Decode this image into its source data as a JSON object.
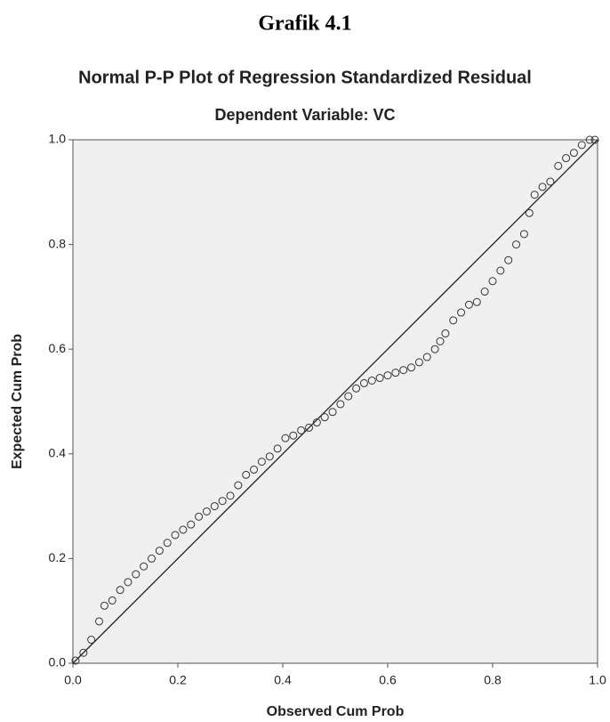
{
  "header": "Grafik 4.1",
  "chart_data": {
    "type": "scatter",
    "title": "Normal P-P Plot of Regression Standardized Residual",
    "subtitle": "Dependent Variable: VC",
    "x_label": "Observed Cum Prob",
    "y_label": "Expected Cum Prob",
    "xlim": [
      0,
      1
    ],
    "ylim": [
      0,
      1
    ],
    "xticks": [
      {
        "value": 0,
        "label": "0.0"
      },
      {
        "value": 0.2,
        "label": "0.2"
      },
      {
        "value": 0.4,
        "label": "0.4"
      },
      {
        "value": 0.6,
        "label": "0.6"
      },
      {
        "value": 0.8,
        "label": "0.8"
      },
      {
        "value": 1,
        "label": "1.0"
      }
    ],
    "yticks": [
      {
        "value": 0,
        "label": "0.0"
      },
      {
        "value": 0.2,
        "label": "0.2"
      },
      {
        "value": 0.4,
        "label": "0.4"
      },
      {
        "value": 0.6,
        "label": "0.6"
      },
      {
        "value": 0.8,
        "label": "0.8"
      },
      {
        "value": 1,
        "label": "1.0"
      }
    ],
    "plot_background": "#f0f0f0",
    "reference_line": true,
    "marker_color": "#333333",
    "x": [
      0.005,
      0.02,
      0.035,
      0.05,
      0.06,
      0.075,
      0.09,
      0.105,
      0.12,
      0.135,
      0.15,
      0.165,
      0.18,
      0.195,
      0.21,
      0.225,
      0.24,
      0.255,
      0.27,
      0.285,
      0.3,
      0.315,
      0.33,
      0.345,
      0.36,
      0.375,
      0.39,
      0.405,
      0.42,
      0.435,
      0.45,
      0.465,
      0.48,
      0.495,
      0.51,
      0.525,
      0.54,
      0.555,
      0.57,
      0.585,
      0.6,
      0.615,
      0.63,
      0.645,
      0.66,
      0.675,
      0.69,
      0.7,
      0.71,
      0.725,
      0.74,
      0.755,
      0.77,
      0.785,
      0.8,
      0.815,
      0.83,
      0.845,
      0.86,
      0.87,
      0.88,
      0.895,
      0.91,
      0.925,
      0.94,
      0.955,
      0.97,
      0.985,
      0.995
    ],
    "values": [
      0.005,
      0.02,
      0.045,
      0.08,
      0.11,
      0.12,
      0.14,
      0.155,
      0.17,
      0.185,
      0.2,
      0.215,
      0.23,
      0.245,
      0.255,
      0.265,
      0.28,
      0.29,
      0.3,
      0.31,
      0.32,
      0.34,
      0.36,
      0.37,
      0.385,
      0.395,
      0.41,
      0.43,
      0.435,
      0.445,
      0.45,
      0.46,
      0.47,
      0.48,
      0.495,
      0.51,
      0.525,
      0.535,
      0.54,
      0.545,
      0.55,
      0.555,
      0.56,
      0.565,
      0.575,
      0.585,
      0.6,
      0.615,
      0.63,
      0.655,
      0.67,
      0.685,
      0.69,
      0.71,
      0.73,
      0.75,
      0.77,
      0.8,
      0.82,
      0.86,
      0.895,
      0.91,
      0.92,
      0.95,
      0.965,
      0.975,
      0.99,
      1.0,
      1.0
    ]
  }
}
